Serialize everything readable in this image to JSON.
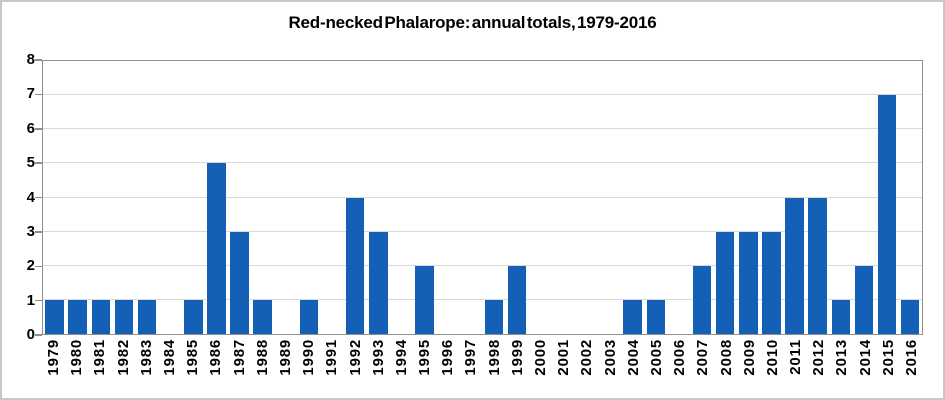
{
  "window": {
    "background": "#FFFFFF",
    "frame_border_color": "#C8C8C8"
  },
  "chart_data": {
    "type": "bar",
    "title": "Red-necked Phalarope: annual totals, 1979-2016",
    "categories": [
      "1979",
      "1980",
      "1981",
      "1982",
      "1983",
      "1984",
      "1985",
      "1986",
      "1987",
      "1988",
      "1989",
      "1990",
      "1991",
      "1992",
      "1993",
      "1994",
      "1995",
      "1996",
      "1997",
      "1998",
      "1999",
      "2000",
      "2001",
      "2002",
      "2003",
      "2004",
      "2005",
      "2006",
      "2007",
      "2008",
      "2009",
      "2010",
      "2011",
      "2012",
      "2013",
      "2014",
      "2015",
      "2016"
    ],
    "values": [
      1,
      1,
      1,
      1,
      1,
      0,
      1,
      5,
      3,
      1,
      0,
      1,
      0,
      4,
      3,
      0,
      2,
      0,
      0,
      1,
      2,
      0,
      0,
      0,
      0,
      1,
      1,
      0,
      2,
      3,
      3,
      3,
      4,
      4,
      1,
      2,
      7,
      1
    ],
    "xlabel": "",
    "ylabel": "",
    "ylim": [
      0,
      8
    ],
    "yticks": [
      0,
      1,
      2,
      3,
      4,
      5,
      6,
      7,
      8
    ],
    "grid": true,
    "legend": false,
    "bar_color": "#1560B7",
    "gridline_color": "#D9D9D9",
    "axis_color": "#8F8F8F"
  }
}
